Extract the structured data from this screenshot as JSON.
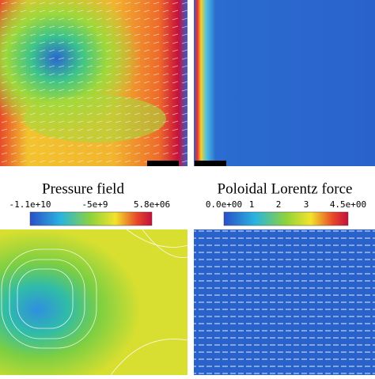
{
  "colorbars": [
    {
      "title": "Pressure field",
      "ticks": [
        "-1.1e+10",
        "-5e+9",
        "5.8e+06"
      ]
    },
    {
      "title": "Poloidal Lorentz force",
      "ticks": [
        "0.0e+00",
        "1",
        "2",
        "3",
        "4.5e+00"
      ]
    }
  ]
}
